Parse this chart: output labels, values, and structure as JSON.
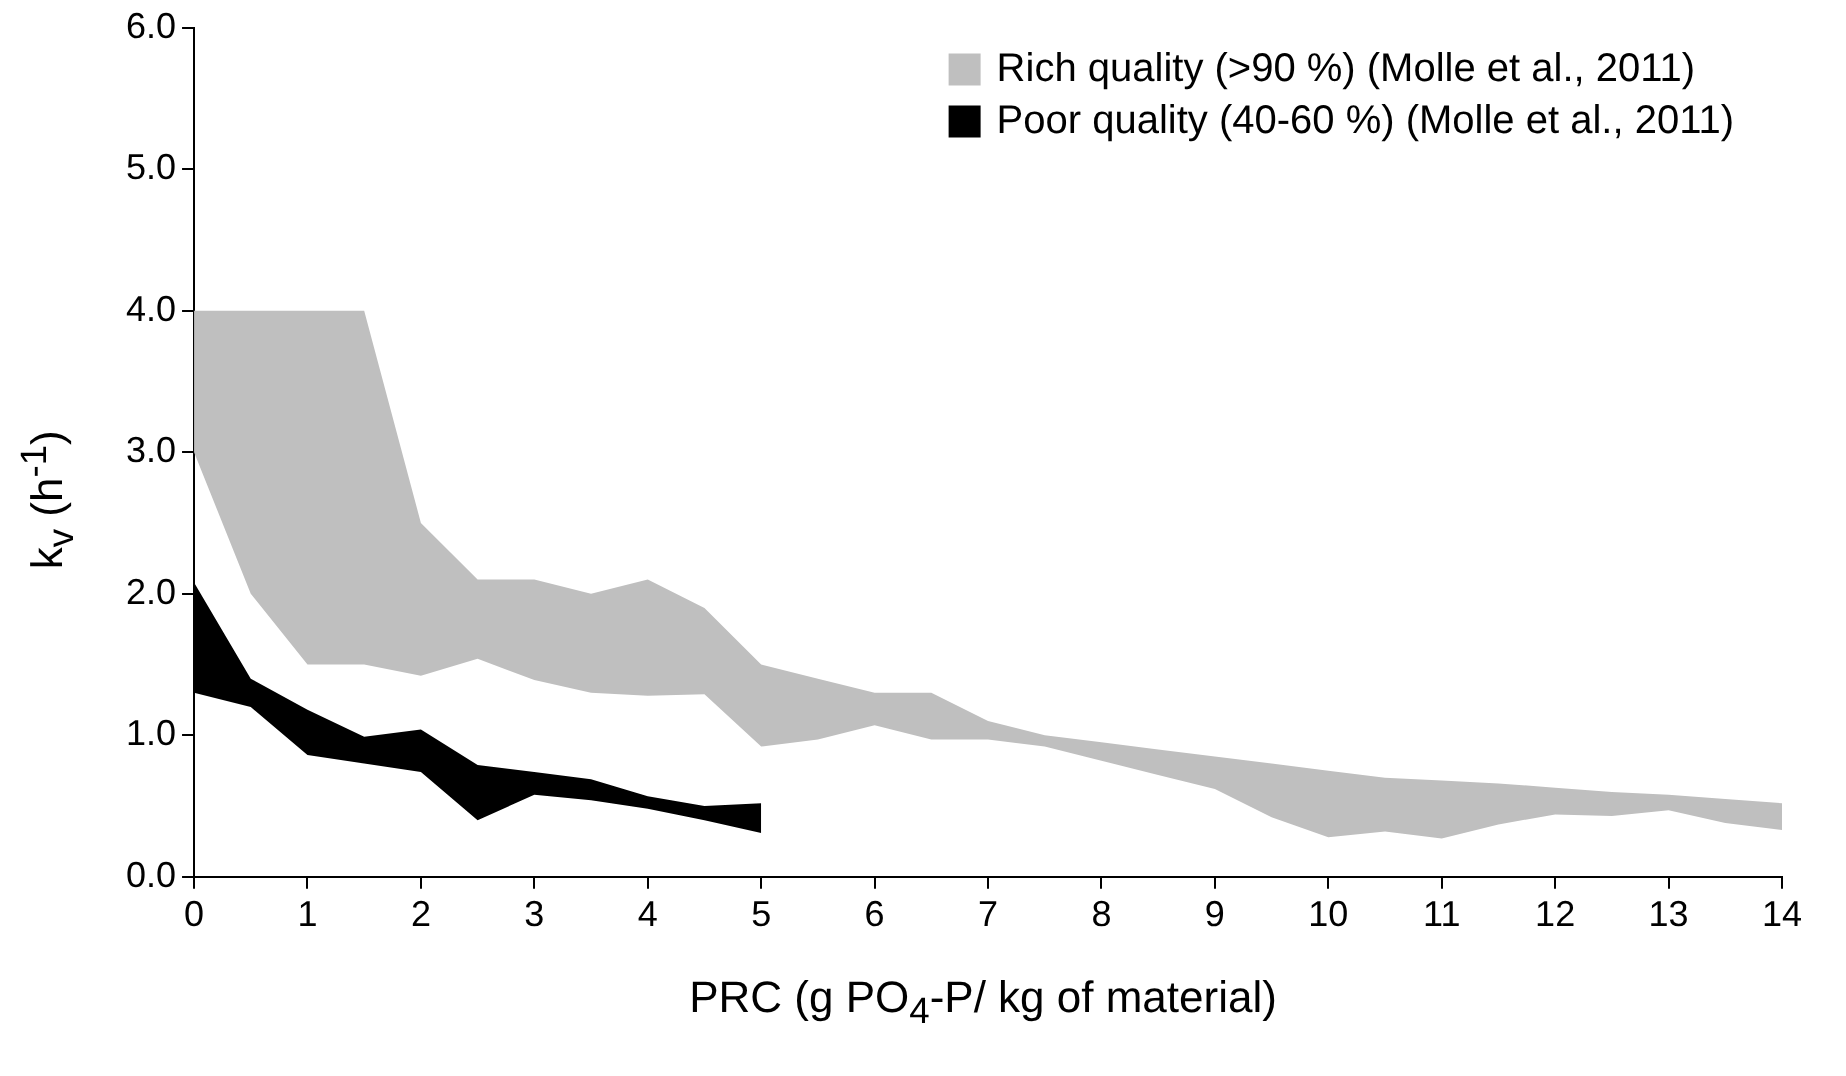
{
  "chart_data": {
    "type": "area",
    "xlabel": "PRC (g PO$_{4}$-P/ kg of material)",
    "ylabel": "k$_{v}$ (h$^{-1}$)",
    "xlim": [
      0,
      14
    ],
    "xticks": [
      0,
      1,
      2,
      3,
      4,
      5,
      6,
      7,
      8,
      9,
      10,
      11,
      12,
      13,
      14
    ],
    "ylim": [
      0,
      6
    ],
    "yticks": [
      {
        "value": 0,
        "label": "0.0"
      },
      {
        "value": 1,
        "label": "1.0"
      },
      {
        "value": 2,
        "label": "2.0"
      },
      {
        "value": 3,
        "label": "3.0"
      },
      {
        "value": 4,
        "label": "4.0"
      },
      {
        "value": 5,
        "label": "5.0"
      },
      {
        "value": 6,
        "label": "6.0"
      }
    ],
    "grid": false,
    "legend": "top right",
    "marker": "none",
    "series": [
      {
        "name": "Rich quality (>90 %) (Molle et al., 2011)",
        "color": "#bfbfbf",
        "x": [
          0,
          0.5,
          1,
          1.5,
          2,
          2.5,
          3,
          3.5,
          4,
          4.5,
          5,
          5.5,
          6,
          6.5,
          7,
          7.5,
          8,
          8.5,
          9,
          9.5,
          10,
          10.5,
          11,
          11.5,
          12,
          12.5,
          13,
          13.5,
          14
        ],
        "values": [
          null,
          null,
          null,
          null,
          null,
          null,
          null,
          null,
          null,
          null,
          null,
          null,
          null,
          null,
          null,
          null,
          null,
          null,
          null,
          null,
          null,
          null,
          null,
          null,
          null,
          null,
          null,
          null,
          null
        ],
        "upper": [
          4.0,
          4.0,
          4.0,
          4.0,
          2.5,
          2.1,
          2.1,
          2.0,
          2.1,
          1.9,
          1.5,
          1.4,
          1.3,
          1.3,
          1.1,
          1.0,
          0.95,
          0.9,
          0.85,
          0.8,
          0.75,
          0.7,
          0.68,
          0.66,
          0.63,
          0.6,
          0.58,
          0.55,
          0.52
        ],
        "lower": [
          3.0,
          2.0,
          1.5,
          1.5,
          1.42,
          1.54,
          1.39,
          1.3,
          1.28,
          1.29,
          0.92,
          0.97,
          1.07,
          0.97,
          0.97,
          0.92,
          0.82,
          0.72,
          0.62,
          0.42,
          0.28,
          0.32,
          0.27,
          0.37,
          0.44,
          0.43,
          0.47,
          0.38,
          0.33
        ]
      },
      {
        "name": "Poor quality (40-60 %) (Molle et al., 2011)",
        "color": "#000000",
        "x": [
          0,
          0.5,
          1,
          1.5,
          2,
          2.5,
          3,
          3.5,
          4,
          4.5,
          5
        ],
        "values": [
          null,
          null,
          null,
          null,
          null,
          null,
          null,
          null,
          null,
          null,
          null
        ],
        "upper": [
          2.08,
          1.4,
          1.18,
          0.99,
          1.04,
          0.79,
          0.74,
          0.69,
          0.57,
          0.5,
          0.52
        ],
        "lower": [
          1.3,
          1.2,
          0.86,
          0.8,
          0.74,
          0.4,
          0.58,
          0.54,
          0.48,
          0.4,
          0.31
        ]
      }
    ]
  }
}
